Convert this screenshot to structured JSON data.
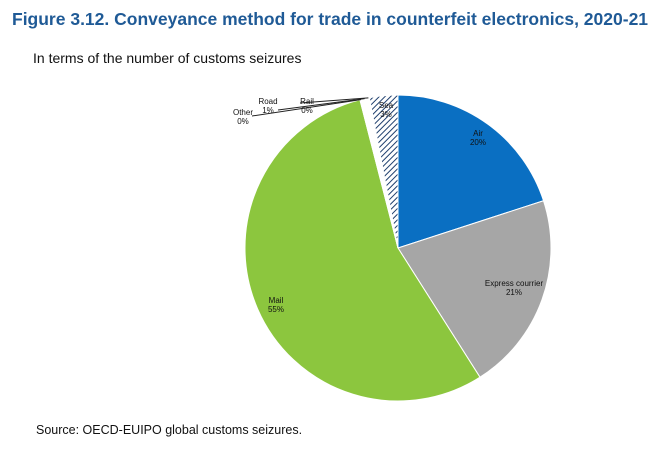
{
  "title": "Figure 3.12. Conveyance method for trade in counterfeit electronics, 2020-21",
  "subtitle": "In terms of the number of customs seizures",
  "source": "Source: OECD-EUIPO global customs seizures.",
  "chart_data": {
    "type": "pie",
    "title": "Figure 3.12. Conveyance method for trade in counterfeit electronics, 2020-21",
    "subtitle": "In terms of the number of customs seizures",
    "start": "12 o'clock",
    "direction": "clockwise",
    "slices": [
      {
        "name": "Air",
        "value": 20,
        "label": "20%",
        "color": "#0a6fc2",
        "pattern": "solid"
      },
      {
        "name": "Express courrier",
        "value": 21,
        "label": "21%",
        "color": "#a6a6a6",
        "pattern": "solid"
      },
      {
        "name": "Mail",
        "value": 55,
        "label": "55%",
        "color": "#8cc63e",
        "pattern": "solid"
      },
      {
        "name": "Other",
        "value": 0.2,
        "label": "0%",
        "color": "#ffffff",
        "pattern": "solid"
      },
      {
        "name": "Road",
        "value": 0.6,
        "label": "1%",
        "color": "#ffffff",
        "pattern": "solid"
      },
      {
        "name": "Rail",
        "value": 0.2,
        "label": "0%",
        "color": "#ffffff",
        "pattern": "solid"
      },
      {
        "name": "Sea",
        "value": 3,
        "label": "3%",
        "color": "#1f3f6e",
        "pattern": "hatched"
      }
    ]
  }
}
